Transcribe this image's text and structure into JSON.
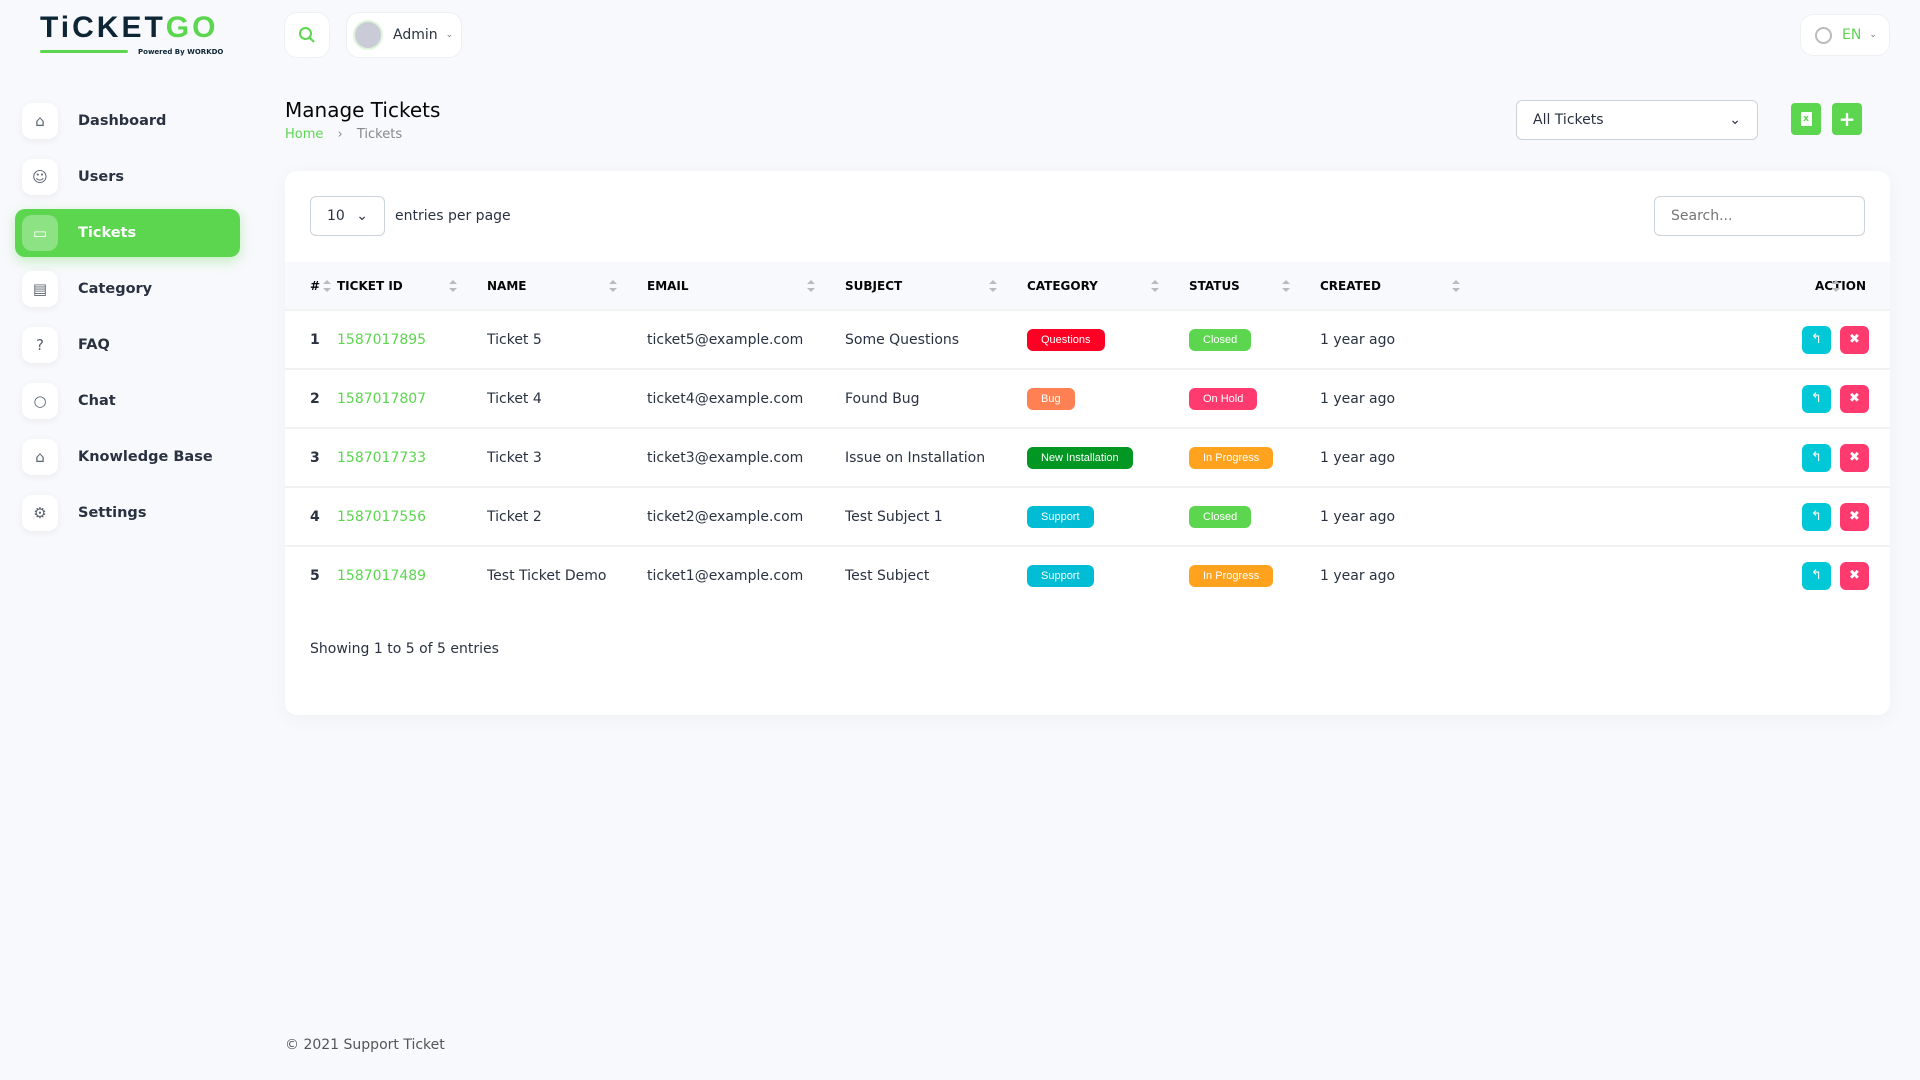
{
  "brand": {
    "logo_text_a": "TiCKET",
    "logo_text_b": "GO",
    "powered": "Powered By WORKDO"
  },
  "header": {
    "user": "Admin",
    "language": "EN"
  },
  "sidebar": {
    "items": [
      {
        "label": "Dashboard",
        "icon": "home-icon"
      },
      {
        "label": "Users",
        "icon": "users-icon"
      },
      {
        "label": "Tickets",
        "icon": "ticket-icon",
        "active": true
      },
      {
        "label": "Category",
        "icon": "clipboard-icon"
      },
      {
        "label": "FAQ",
        "icon": "question-icon"
      },
      {
        "label": "Chat",
        "icon": "chat-icon"
      },
      {
        "label": "Knowledge Base",
        "icon": "graduation-cap-icon"
      },
      {
        "label": "Settings",
        "icon": "gear-icon"
      }
    ]
  },
  "page": {
    "title": "Manage Tickets",
    "breadcrumb": [
      "Home",
      "Tickets"
    ],
    "filter": "All Tickets"
  },
  "table": {
    "per_page": "10",
    "per_page_label": "entries per page",
    "search_placeholder": "Search...",
    "columns": [
      "#",
      "TICKET ID",
      "NAME",
      "EMAIL",
      "SUBJECT",
      "CATEGORY",
      "STATUS",
      "CREATED",
      "ACTION"
    ],
    "rows": [
      {
        "n": "1",
        "id": "1587017895",
        "name": "Ticket 5",
        "email": "ticket5@example.com",
        "subject": "Some Questions",
        "category": "Questions",
        "category_color": "#ff0025",
        "status": "Closed",
        "status_color": "#5cd64f",
        "created": "1 year ago"
      },
      {
        "n": "2",
        "id": "1587017807",
        "name": "Ticket 4",
        "email": "ticket4@example.com",
        "subject": "Found Bug",
        "category": "Bug",
        "category_color": "#ff8052",
        "status": "On Hold",
        "status_color": "#ff3a6e",
        "created": "1 year ago"
      },
      {
        "n": "3",
        "id": "1587017733",
        "name": "Ticket 3",
        "email": "ticket3@example.com",
        "subject": "Issue on Installation",
        "category": "New Installation",
        "category_color": "#019722",
        "status": "In Progress",
        "status_color": "#ffa21d",
        "created": "1 year ago"
      },
      {
        "n": "4",
        "id": "1587017556",
        "name": "Ticket 2",
        "email": "ticket2@example.com",
        "subject": "Test Subject 1",
        "category": "Support",
        "category_color": "#00bcd4",
        "status": "Closed",
        "status_color": "#5cd64f",
        "created": "1 year ago"
      },
      {
        "n": "5",
        "id": "1587017489",
        "name": "Test Ticket Demo",
        "email": "ticket1@example.com",
        "subject": "Test Subject",
        "category": "Support",
        "category_color": "#00bcd4",
        "status": "In Progress",
        "status_color": "#ffa21d",
        "created": "1 year ago"
      }
    ],
    "summary": "Showing 1 to 5 of 5 entries"
  },
  "footer": "© 2021 Support Ticket",
  "colors": {
    "accent": "#5cd64f",
    "reply": "#00c8d7",
    "delete": "#ff3a6e"
  }
}
